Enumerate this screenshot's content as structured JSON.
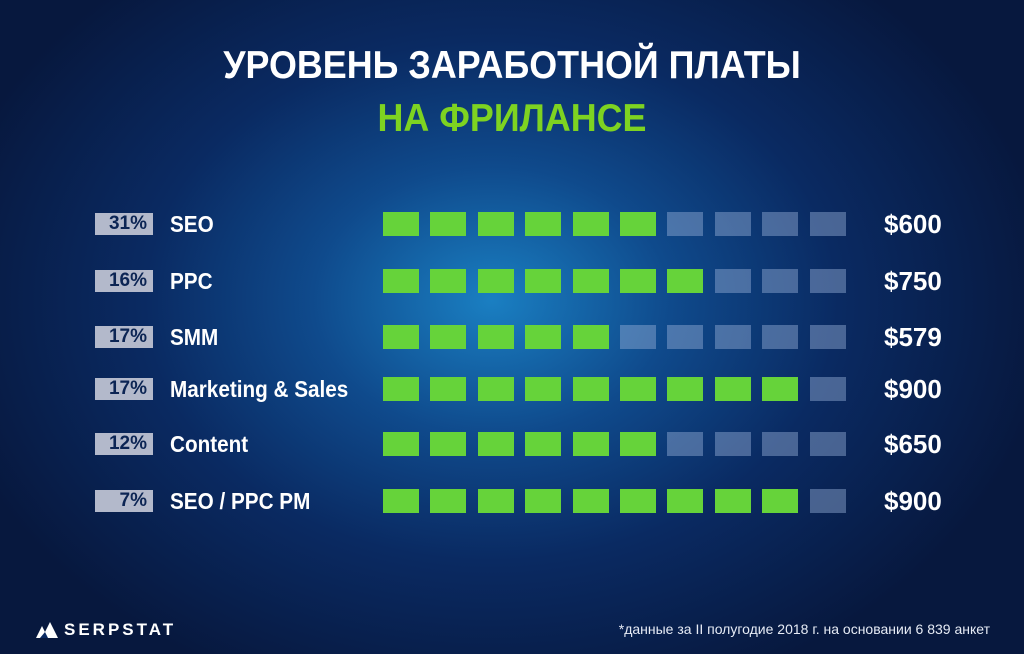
{
  "header": {
    "title_line1": "УРОВЕНЬ ЗАРАБОТНОЙ ПЛАТЫ",
    "title_line2": "НА ФРИЛАНСЕ"
  },
  "colors": {
    "filled_segment": "#66d33a",
    "empty_segment": "#7f95bd",
    "percent_badge": "#b3b9cb",
    "title_accent": "#7ed321"
  },
  "chart_data": {
    "type": "table",
    "segments_total": 10,
    "rows": [
      {
        "share": "31%",
        "category": "SEO",
        "filled": 6,
        "salary": "$600"
      },
      {
        "share": "16%",
        "category": "PPC",
        "filled": 7,
        "salary": "$750"
      },
      {
        "share": "17%",
        "category": "SMM",
        "filled": 5,
        "salary": "$579"
      },
      {
        "share": "17%",
        "category": "Marketing & Sales",
        "filled": 9,
        "salary": "$900"
      },
      {
        "share": "12%",
        "category": "Content",
        "filled": 6,
        "salary": "$650"
      },
      {
        "share": "7%",
        "category": "SEO / PPC PM",
        "filled": 9,
        "salary": "$900"
      }
    ]
  },
  "footer": {
    "brand": "SERPSTAT",
    "footnote": "*данные за II полугодие 2018 г. на основании 6 839 анкет"
  }
}
